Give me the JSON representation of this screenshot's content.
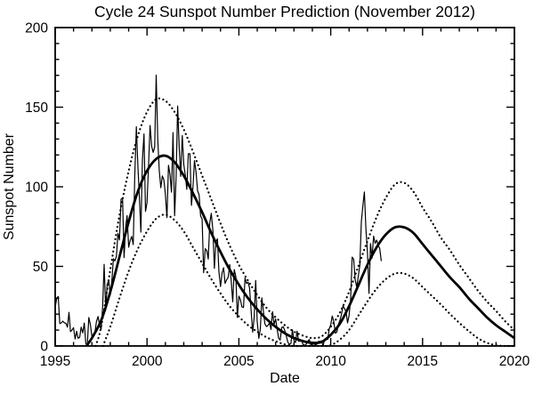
{
  "colors": {
    "foreground": "#000000",
    "background": "#ffffff"
  },
  "chart_data": {
    "type": "line",
    "title": "Cycle 24 Sunspot Number Prediction (November 2012)",
    "xlabel": "Date",
    "ylabel": "Sunspot Number",
    "xlim": [
      1995,
      2020
    ],
    "ylim": [
      0,
      200
    ],
    "grid": false,
    "legend_position": "none",
    "x_major_ticks": [
      1995,
      2000,
      2005,
      2010,
      2015,
      2020
    ],
    "x_major_tick_labels": [
      "1995",
      "2000",
      "2005",
      "2010",
      "2015",
      "2020"
    ],
    "x_minor_step": 1,
    "y_major_ticks": [
      0,
      50,
      100,
      150,
      200
    ],
    "y_major_tick_labels": [
      "0",
      "50",
      "100",
      "150",
      "200"
    ],
    "y_minor_step": 10,
    "series": [
      {
        "name": "observed-monthly-sunspot-number",
        "style": "solid",
        "width": 1.2,
        "smooth": false,
        "x_start": 1995.0,
        "x_step": 0.083333,
        "values": [
          24.2,
          29.9,
          31.1,
          14.0,
          14.5,
          15.6,
          14.5,
          14.3,
          11.8,
          21.1,
          9.0,
          10.0,
          11.5,
          4.4,
          9.2,
          4.8,
          5.5,
          11.8,
          8.2,
          14.4,
          1.6,
          0.9,
          17.9,
          13.3,
          5.7,
          7.6,
          8.7,
          15.5,
          18.5,
          12.7,
          10.4,
          24.4,
          51.3,
          22.8,
          39.0,
          41.2,
          31.9,
          40.3,
          54.8,
          53.4,
          56.3,
          70.7,
          66.6,
          92.2,
          92.9,
          55.5,
          74.0,
          81.9,
          62.0,
          66.3,
          68.8,
          63.7,
          106.4,
          137.7,
          113.5,
          93.7,
          71.5,
          116.7,
          133.2,
          84.6,
          90.1,
          112.9,
          138.5,
          125.5,
          121.6,
          124.9,
          170.1,
          130.5,
          109.7,
          99.4,
          106.8,
          104.4,
          95.6,
          80.6,
          113.5,
          107.7,
          96.6,
          134.0,
          81.8,
          106.4,
          150.7,
          125.5,
          106.5,
          132.2,
          114.1,
          107.4,
          98.4,
          120.7,
          120.8,
          88.3,
          99.6,
          116.4,
          109.6,
          97.5,
          95.0,
          81.6,
          79.7,
          46.0,
          61.1,
          60.0,
          54.6,
          77.4,
          83.3,
          72.7,
          48.7,
          65.5,
          67.3,
          46.5,
          37.3,
          45.8,
          49.1,
          39.3,
          41.5,
          43.2,
          51.1,
          40.9,
          27.7,
          48.0,
          43.5,
          17.9,
          31.3,
          29.2,
          24.5,
          24.2,
          42.7,
          39.3,
          40.1,
          36.4,
          21.9,
          8.7,
          18.0,
          41.2,
          15.4,
          4.8,
          10.6,
          30.2,
          22.2,
          13.9,
          12.2,
          12.9,
          14.5,
          10.4,
          21.5,
          13.6,
          16.9,
          10.6,
          4.8,
          3.7,
          11.7,
          12.0,
          9.7,
          6.2,
          2.4,
          0.9,
          1.7,
          10.1,
          3.4,
          2.1,
          9.3,
          2.9,
          3.2,
          3.4,
          0.8,
          0.5,
          1.1,
          2.9,
          4.1,
          0.8,
          1.3,
          1.4,
          0.7,
          1.2,
          2.9,
          2.9,
          3.2,
          0.0,
          4.3,
          4.8,
          4.1,
          10.8,
          13.2,
          18.8,
          15.4,
          8.0,
          8.8,
          13.5,
          16.1,
          19.6,
          25.2,
          23.5,
          21.6,
          14.5,
          19.0,
          29.6,
          55.8,
          54.4,
          41.6,
          37.0,
          43.9,
          50.6,
          78.0,
          88.0,
          96.7,
          73.0,
          58.3,
          33.0,
          64.3,
          55.2,
          69.0,
          64.5,
          66.5,
          63.1,
          61.5,
          53.3
        ]
      },
      {
        "name": "predicted-sunspot-number",
        "style": "solid",
        "width": 2.8,
        "smooth": true,
        "x": [
          1996.7,
          1997.0,
          1997.5,
          1998.0,
          1998.5,
          1999.0,
          1999.5,
          2000.0,
          2000.5,
          2001.0,
          2001.5,
          2002.0,
          2002.5,
          2003.0,
          2003.5,
          2004.0,
          2004.5,
          2005.0,
          2005.5,
          2006.0,
          2006.5,
          2007.0,
          2007.5,
          2008.0,
          2008.5,
          2009.0,
          2009.5,
          2010.0,
          2010.5,
          2011.0,
          2011.5,
          2012.0,
          2012.5,
          2013.0,
          2013.5,
          2014.0,
          2014.5,
          2015.0,
          2015.5,
          2016.0,
          2016.5,
          2017.0,
          2017.5,
          2018.0,
          2018.5,
          2019.0,
          2019.5,
          2020.0
        ],
        "values": [
          0,
          5,
          16,
          34,
          56,
          78,
          97,
          110,
          117.5,
          119.5,
          115.5,
          107,
          96,
          84,
          71,
          59,
          48,
          38.5,
          30,
          23,
          17,
          12,
          8,
          5,
          3,
          2,
          2.5,
          7,
          14,
          25,
          38,
          51,
          62,
          70,
          74.5,
          74.5,
          71,
          64,
          57,
          50,
          43,
          37,
          30,
          24,
          18,
          13,
          9,
          5
        ]
      },
      {
        "name": "prediction-upper-uncertainty",
        "style": "dotted",
        "width": 2.2,
        "smooth": true,
        "x": [
          1997.2,
          1997.5,
          1998.0,
          1998.5,
          1999.0,
          1999.5,
          2000.0,
          2000.5,
          2001.0,
          2001.5,
          2002.0,
          2002.5,
          2003.0,
          2003.5,
          2004.0,
          2004.5,
          2005.0,
          2005.5,
          2006.0,
          2006.5,
          2007.0,
          2007.5,
          2008.0,
          2008.5,
          2009.0,
          2009.5,
          2010.0,
          2010.5,
          2011.0,
          2011.5,
          2012.0,
          2012.5,
          2013.0,
          2013.5,
          2014.0,
          2014.5,
          2015.0,
          2015.5,
          2016.0,
          2016.5,
          2017.0,
          2017.5,
          2018.0,
          2018.5,
          2019.0,
          2019.5,
          2020.0
        ],
        "values": [
          0,
          12,
          48,
          82,
          110,
          132,
          147,
          155,
          154,
          147,
          136,
          122,
          107,
          92,
          77,
          63,
          51,
          41,
          32,
          24,
          18,
          13,
          9,
          6.5,
          5,
          6,
          12,
          21,
          34,
          50,
          66,
          81,
          93,
          101.5,
          102.5,
          97,
          87,
          78,
          68,
          60,
          51,
          43,
          35,
          28,
          22,
          15.5,
          10
        ]
      },
      {
        "name": "prediction-lower-uncertainty",
        "style": "dotted",
        "width": 2.2,
        "smooth": true,
        "x": [
          1997.6,
          1998.0,
          1998.5,
          1999.0,
          1999.5,
          2000.0,
          2000.5,
          2001.0,
          2001.5,
          2002.0,
          2002.5,
          2003.0,
          2003.5,
          2004.0,
          2004.5,
          2005.0,
          2005.5,
          2006.0,
          2006.5,
          2007.0,
          2007.5,
          2008.0,
          2008.5,
          2009.0,
          2009.5,
          2010.0,
          2010.5,
          2011.0,
          2011.5,
          2012.0,
          2012.5,
          2013.0,
          2013.5,
          2014.0,
          2014.5,
          2015.0,
          2015.5,
          2016.0,
          2016.5,
          2017.0,
          2017.5,
          2018.0,
          2018.5,
          2019.0,
          2019.5,
          2020.0
        ],
        "values": [
          0,
          12,
          30,
          47,
          61,
          72,
          80,
          82.5,
          79,
          72,
          62,
          52,
          42,
          33,
          25,
          18.5,
          13,
          9,
          5.5,
          3,
          1,
          0,
          0,
          0,
          0,
          0.5,
          4,
          10,
          19,
          28,
          36,
          42,
          45.5,
          45.5,
          42.5,
          37,
          31.5,
          26,
          20,
          14.5,
          9.5,
          5,
          2,
          0.5,
          0,
          0
        ]
      }
    ]
  }
}
